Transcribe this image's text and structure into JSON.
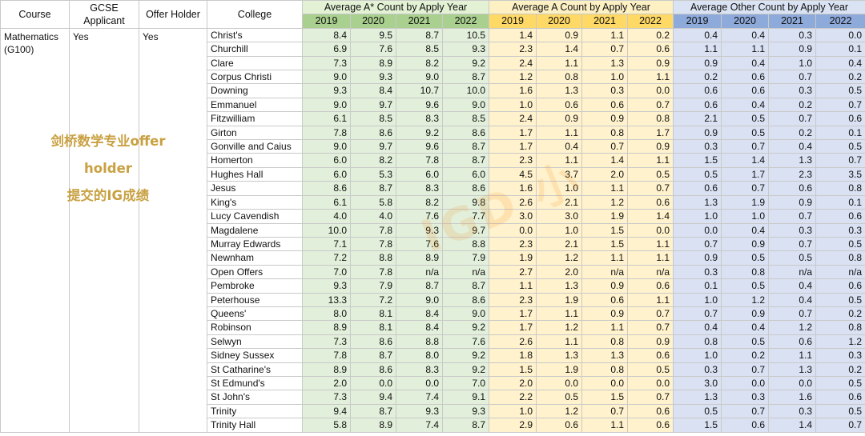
{
  "header": {
    "course": "Course",
    "gcse": "GCSE Applicant",
    "offer": "Offer Holder",
    "college": "College",
    "group_astar": "Average A* Count by Apply Year",
    "group_a": "Average A Count by Apply Year",
    "group_other": "Average Other Count by Apply Year",
    "years": [
      "2019",
      "2020",
      "2021",
      "2022"
    ]
  },
  "meta": {
    "course_value": "Mathematics (G100)",
    "gcse_value": "Yes",
    "offer_value": "Yes"
  },
  "overlay": {
    "line1": "剑桥数学专业offer holder",
    "line2": "提交的IG成绩"
  },
  "watermark": "IGD 小",
  "colors": {
    "green_header": "#a9d08e",
    "green_cell": "#e2efda",
    "yellow_header": "#ffd966",
    "yellow_cell": "#fff2cc",
    "blue_header": "#8eaadb",
    "blue_cell": "#d9e1f2",
    "overlay_text": "#c9a142"
  },
  "rows": [
    {
      "college": "Christ's",
      "astar": [
        "8.4",
        "9.5",
        "8.7",
        "10.5"
      ],
      "a": [
        "1.4",
        "0.9",
        "1.1",
        "0.2"
      ],
      "other": [
        "0.4",
        "0.4",
        "0.3",
        "0.0"
      ]
    },
    {
      "college": "Churchill",
      "astar": [
        "6.9",
        "7.6",
        "8.5",
        "9.3"
      ],
      "a": [
        "2.3",
        "1.4",
        "0.7",
        "0.6"
      ],
      "other": [
        "1.1",
        "1.1",
        "0.9",
        "0.1"
      ]
    },
    {
      "college": "Clare",
      "astar": [
        "7.3",
        "8.9",
        "8.2",
        "9.2"
      ],
      "a": [
        "2.4",
        "1.1",
        "1.3",
        "0.9"
      ],
      "other": [
        "0.9",
        "0.4",
        "1.0",
        "0.4"
      ]
    },
    {
      "college": "Corpus Christi",
      "astar": [
        "9.0",
        "9.3",
        "9.0",
        "8.7"
      ],
      "a": [
        "1.2",
        "0.8",
        "1.0",
        "1.1"
      ],
      "other": [
        "0.2",
        "0.6",
        "0.7",
        "0.2"
      ]
    },
    {
      "college": "Downing",
      "astar": [
        "9.3",
        "8.4",
        "10.7",
        "10.0"
      ],
      "a": [
        "1.6",
        "1.3",
        "0.3",
        "0.0"
      ],
      "other": [
        "0.6",
        "0.6",
        "0.3",
        "0.5"
      ]
    },
    {
      "college": "Emmanuel",
      "astar": [
        "9.0",
        "9.7",
        "9.6",
        "9.0"
      ],
      "a": [
        "1.0",
        "0.6",
        "0.6",
        "0.7"
      ],
      "other": [
        "0.6",
        "0.4",
        "0.2",
        "0.7"
      ]
    },
    {
      "college": "Fitzwilliam",
      "astar": [
        "6.1",
        "8.5",
        "8.3",
        "8.5"
      ],
      "a": [
        "2.4",
        "0.9",
        "0.9",
        "0.8"
      ],
      "other": [
        "2.1",
        "0.5",
        "0.7",
        "0.6"
      ]
    },
    {
      "college": "Girton",
      "astar": [
        "7.8",
        "8.6",
        "9.2",
        "8.6"
      ],
      "a": [
        "1.7",
        "1.1",
        "0.8",
        "1.7"
      ],
      "other": [
        "0.9",
        "0.5",
        "0.2",
        "0.1"
      ]
    },
    {
      "college": "Gonville and Caius",
      "astar": [
        "9.0",
        "9.7",
        "9.6",
        "8.7"
      ],
      "a": [
        "1.7",
        "0.4",
        "0.7",
        "0.9"
      ],
      "other": [
        "0.3",
        "0.7",
        "0.4",
        "0.5"
      ]
    },
    {
      "college": "Homerton",
      "astar": [
        "6.0",
        "8.2",
        "7.8",
        "8.7"
      ],
      "a": [
        "2.3",
        "1.1",
        "1.4",
        "1.1"
      ],
      "other": [
        "1.5",
        "1.4",
        "1.3",
        "0.7"
      ]
    },
    {
      "college": "Hughes Hall",
      "astar": [
        "6.0",
        "5.3",
        "6.0",
        "6.0"
      ],
      "a": [
        "4.5",
        "3.7",
        "2.0",
        "0.5"
      ],
      "other": [
        "0.5",
        "1.7",
        "2.3",
        "3.5"
      ]
    },
    {
      "college": "Jesus",
      "astar": [
        "8.6",
        "8.7",
        "8.3",
        "8.6"
      ],
      "a": [
        "1.6",
        "1.0",
        "1.1",
        "0.7"
      ],
      "other": [
        "0.6",
        "0.7",
        "0.6",
        "0.8"
      ]
    },
    {
      "college": "King's",
      "astar": [
        "6.1",
        "5.8",
        "8.2",
        "9.8"
      ],
      "a": [
        "2.6",
        "2.1",
        "1.2",
        "0.6"
      ],
      "other": [
        "1.3",
        "1.9",
        "0.9",
        "0.1"
      ]
    },
    {
      "college": "Lucy Cavendish",
      "astar": [
        "4.0",
        "4.0",
        "7.6",
        "7.7"
      ],
      "a": [
        "3.0",
        "3.0",
        "1.9",
        "1.4"
      ],
      "other": [
        "1.0",
        "1.0",
        "0.7",
        "0.6"
      ]
    },
    {
      "college": "Magdalene",
      "astar": [
        "10.0",
        "7.8",
        "9.3",
        "9.7"
      ],
      "a": [
        "0.0",
        "1.0",
        "1.5",
        "0.0"
      ],
      "other": [
        "0.0",
        "0.4",
        "0.3",
        "0.3"
      ]
    },
    {
      "college": "Murray Edwards",
      "astar": [
        "7.1",
        "7.8",
        "7.6",
        "8.8"
      ],
      "a": [
        "2.3",
        "2.1",
        "1.5",
        "1.1"
      ],
      "other": [
        "0.7",
        "0.9",
        "0.7",
        "0.5"
      ]
    },
    {
      "college": "Newnham",
      "astar": [
        "7.2",
        "8.8",
        "8.9",
        "7.9"
      ],
      "a": [
        "1.9",
        "1.2",
        "1.1",
        "1.1"
      ],
      "other": [
        "0.9",
        "0.5",
        "0.5",
        "0.8"
      ]
    },
    {
      "college": "Open Offers",
      "astar": [
        "7.0",
        "7.8",
        "n/a",
        "n/a"
      ],
      "a": [
        "2.7",
        "2.0",
        "n/a",
        "n/a"
      ],
      "other": [
        "0.3",
        "0.8",
        "n/a",
        "n/a"
      ]
    },
    {
      "college": "Pembroke",
      "astar": [
        "9.3",
        "7.9",
        "8.7",
        "8.7"
      ],
      "a": [
        "1.1",
        "1.3",
        "0.9",
        "0.6"
      ],
      "other": [
        "0.1",
        "0.5",
        "0.4",
        "0.6"
      ]
    },
    {
      "college": "Peterhouse",
      "astar": [
        "13.3",
        "7.2",
        "9.0",
        "8.6"
      ],
      "a": [
        "2.3",
        "1.9",
        "0.6",
        "1.1"
      ],
      "other": [
        "1.0",
        "1.2",
        "0.4",
        "0.5"
      ]
    },
    {
      "college": "Queens'",
      "astar": [
        "8.0",
        "8.1",
        "8.4",
        "9.0"
      ],
      "a": [
        "1.7",
        "1.1",
        "0.9",
        "0.7"
      ],
      "other": [
        "0.7",
        "0.9",
        "0.7",
        "0.2"
      ]
    },
    {
      "college": "Robinson",
      "astar": [
        "8.9",
        "8.1",
        "8.4",
        "9.2"
      ],
      "a": [
        "1.7",
        "1.2",
        "1.1",
        "0.7"
      ],
      "other": [
        "0.4",
        "0.4",
        "1.2",
        "0.8"
      ]
    },
    {
      "college": "Selwyn",
      "astar": [
        "7.3",
        "8.6",
        "8.8",
        "7.6"
      ],
      "a": [
        "2.6",
        "1.1",
        "0.8",
        "0.9"
      ],
      "other": [
        "0.8",
        "0.5",
        "0.6",
        "1.2"
      ]
    },
    {
      "college": "Sidney Sussex",
      "astar": [
        "7.8",
        "8.7",
        "8.0",
        "9.2"
      ],
      "a": [
        "1.8",
        "1.3",
        "1.3",
        "0.6"
      ],
      "other": [
        "1.0",
        "0.2",
        "1.1",
        "0.3"
      ]
    },
    {
      "college": "St Catharine's",
      "astar": [
        "8.9",
        "8.6",
        "8.3",
        "9.2"
      ],
      "a": [
        "1.5",
        "1.9",
        "0.8",
        "0.5"
      ],
      "other": [
        "0.3",
        "0.7",
        "1.3",
        "0.2"
      ]
    },
    {
      "college": "St Edmund's",
      "astar": [
        "2.0",
        "0.0",
        "0.0",
        "7.0"
      ],
      "a": [
        "2.0",
        "0.0",
        "0.0",
        "0.0"
      ],
      "other": [
        "3.0",
        "0.0",
        "0.0",
        "0.5"
      ]
    },
    {
      "college": "St John's",
      "astar": [
        "7.3",
        "9.4",
        "7.4",
        "9.1"
      ],
      "a": [
        "2.2",
        "0.5",
        "1.5",
        "0.7"
      ],
      "other": [
        "1.3",
        "0.3",
        "1.6",
        "0.6"
      ]
    },
    {
      "college": "Trinity",
      "astar": [
        "9.4",
        "8.7",
        "9.3",
        "9.3"
      ],
      "a": [
        "1.0",
        "1.2",
        "0.7",
        "0.6"
      ],
      "other": [
        "0.5",
        "0.7",
        "0.3",
        "0.5"
      ]
    },
    {
      "college": "Trinity Hall",
      "astar": [
        "5.8",
        "8.9",
        "7.4",
        "8.7"
      ],
      "a": [
        "2.9",
        "0.6",
        "1.1",
        "0.6"
      ],
      "other": [
        "1.5",
        "0.6",
        "1.4",
        "0.7"
      ]
    }
  ]
}
